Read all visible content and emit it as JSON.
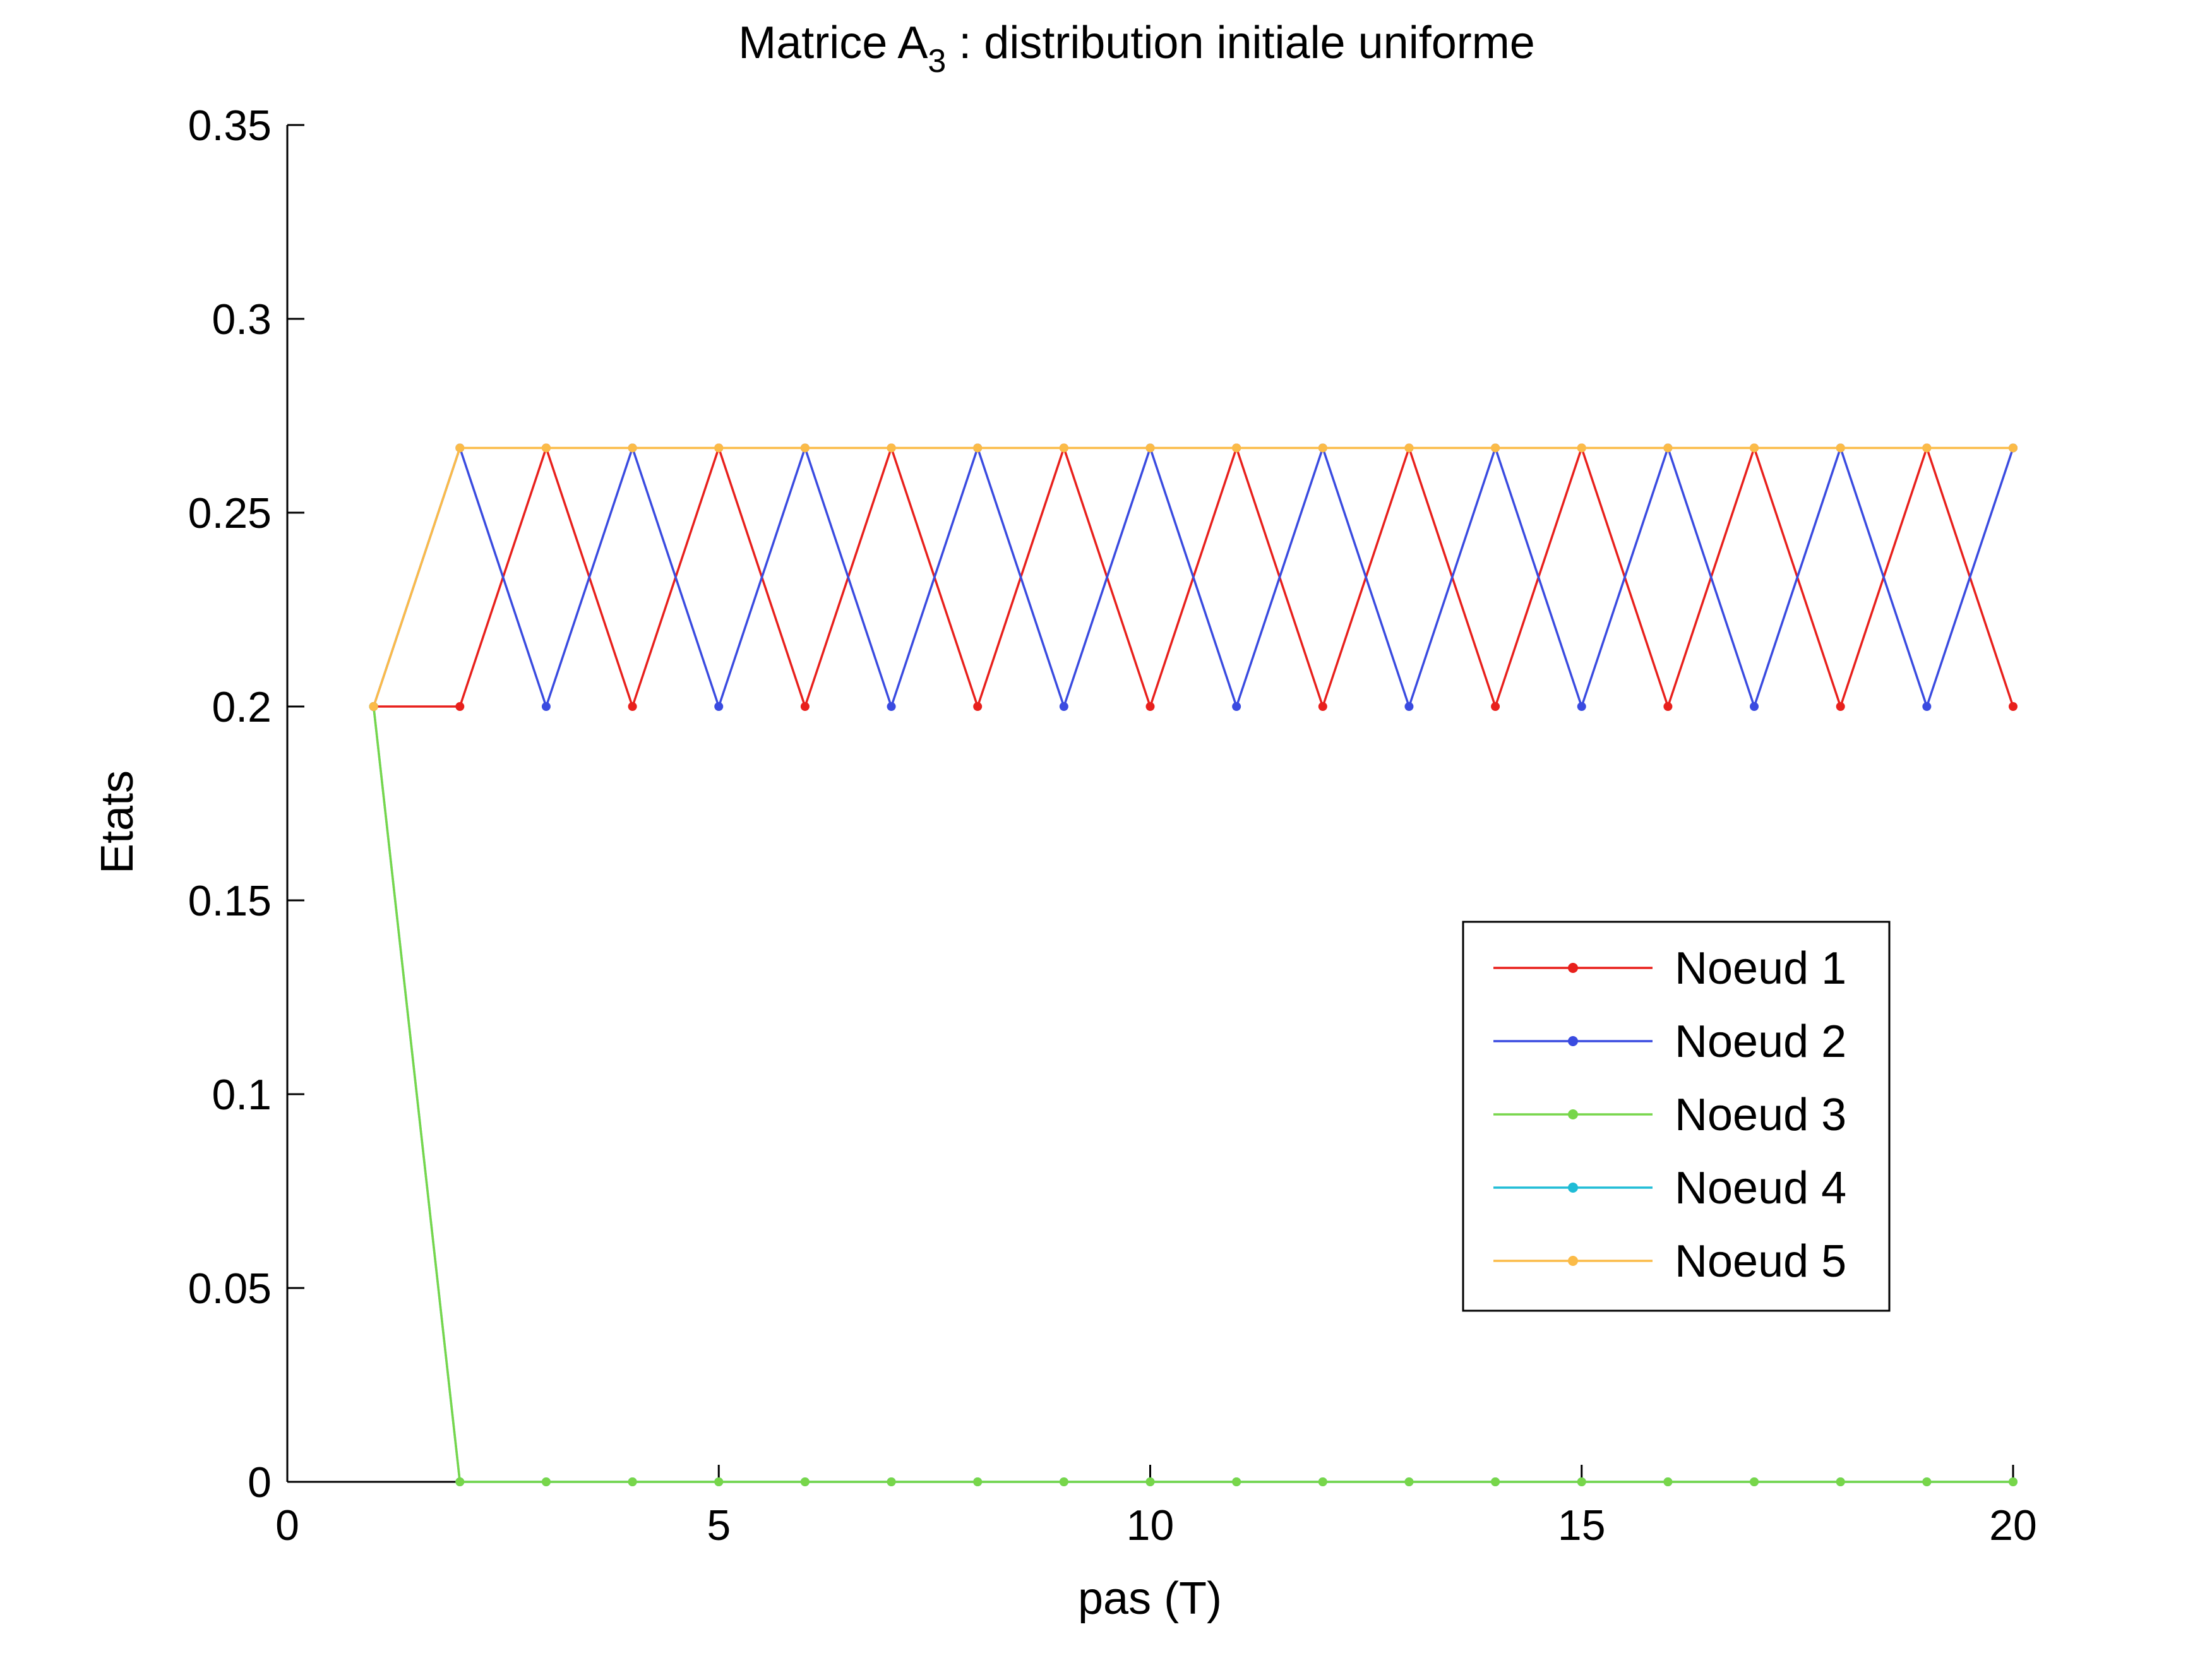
{
  "chart_data": {
    "type": "line",
    "title_main": "Matrice A",
    "title_sub": "3",
    "title_rest": " : distribution initiale uniforme",
    "xlabel": "pas (T)",
    "ylabel": "Etats",
    "xlim": [
      0,
      20
    ],
    "ylim": [
      0,
      0.35
    ],
    "xticks": [
      0,
      5,
      10,
      15,
      20
    ],
    "xtick_labels": [
      "0",
      "5",
      "10",
      "15",
      "20"
    ],
    "yticks": [
      0,
      0.05,
      0.1,
      0.15,
      0.2,
      0.25,
      0.3,
      0.35
    ],
    "ytick_labels": [
      "0",
      "0.05",
      "0.1",
      "0.15",
      "0.2",
      "0.25",
      "0.3",
      "0.35"
    ],
    "grid": false,
    "legend_position": "right",
    "x": [
      1,
      2,
      3,
      4,
      5,
      6,
      7,
      8,
      9,
      10,
      11,
      12,
      13,
      14,
      15,
      16,
      17,
      18,
      19,
      20
    ],
    "series": [
      {
        "name": "Noeud 1",
        "color": "#e8201c",
        "values": [
          0.2,
          0.2,
          0.2667,
          0.2,
          0.2667,
          0.2,
          0.2667,
          0.2,
          0.2667,
          0.2,
          0.2667,
          0.2,
          0.2667,
          0.2,
          0.2667,
          0.2,
          0.2667,
          0.2,
          0.2667,
          0.2
        ]
      },
      {
        "name": "Noeud 2",
        "color": "#3a4be0",
        "values": [
          0.2,
          0.2667,
          0.2,
          0.2667,
          0.2,
          0.2667,
          0.2,
          0.2667,
          0.2,
          0.2667,
          0.2,
          0.2667,
          0.2,
          0.2667,
          0.2,
          0.2667,
          0.2,
          0.2667,
          0.2,
          0.2667
        ]
      },
      {
        "name": "Noeud 3",
        "color": "#77d64a",
        "values": [
          0.2,
          0,
          0,
          0,
          0,
          0,
          0,
          0,
          0,
          0,
          0,
          0,
          0,
          0,
          0,
          0,
          0,
          0,
          0,
          0
        ]
      },
      {
        "name": "Noeud 4",
        "color": "#1fbcd6",
        "values": [
          0.2,
          0,
          0,
          0,
          0,
          0,
          0,
          0,
          0,
          0,
          0,
          0,
          0,
          0,
          0,
          0,
          0,
          0,
          0,
          0
        ]
      },
      {
        "name": "Noeud 5",
        "color": "#fbbb48",
        "values": [
          0.2,
          0.2667,
          0.2667,
          0.2667,
          0.2667,
          0.2667,
          0.2667,
          0.2667,
          0.2667,
          0.2667,
          0.2667,
          0.2667,
          0.2667,
          0.2667,
          0.2667,
          0.2667,
          0.2667,
          0.2667,
          0.2667,
          0.2667
        ]
      }
    ]
  }
}
